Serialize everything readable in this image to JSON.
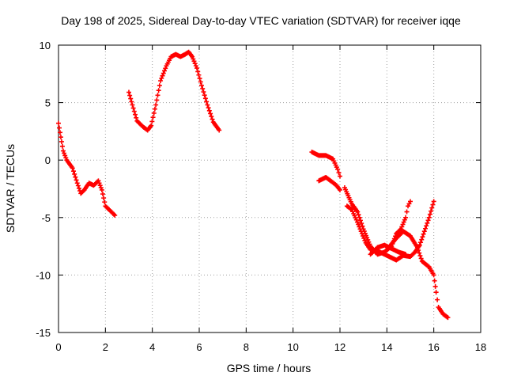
{
  "chart_data": {
    "type": "scatter",
    "title": "Day 198 of 2025, Sidereal Day-to-day VTEC variation (SDTVAR) for receiver iqqe",
    "xlabel": "GPS time / hours",
    "ylabel": "SDTVAR / TECUs",
    "xlim": [
      0,
      18
    ],
    "ylim": [
      -15,
      10
    ],
    "xticks": [
      "0",
      "2",
      "4",
      "6",
      "8",
      "10",
      "12",
      "14",
      "16",
      "18"
    ],
    "yticks": [
      "10",
      "5",
      "0",
      "-5",
      "-10",
      "-15"
    ],
    "grid": true,
    "marker": "plus",
    "color": "#ff0000",
    "series": [
      {
        "name": "arc-1",
        "anchors": [
          [
            0.0,
            3.2
          ],
          [
            0.1,
            2.0
          ],
          [
            0.2,
            0.8
          ],
          [
            0.35,
            0.0
          ],
          [
            0.6,
            -0.7
          ],
          [
            0.8,
            -2.0
          ],
          [
            0.95,
            -2.9
          ],
          [
            1.1,
            -2.6
          ],
          [
            1.3,
            -2.0
          ],
          [
            1.5,
            -2.2
          ],
          [
            1.7,
            -1.8
          ],
          [
            1.85,
            -2.6
          ],
          [
            2.0,
            -4.0
          ],
          [
            2.2,
            -4.4
          ],
          [
            2.4,
            -4.8
          ]
        ]
      },
      {
        "name": "arc-2",
        "anchors": [
          [
            3.0,
            5.9
          ],
          [
            3.15,
            4.8
          ],
          [
            3.35,
            3.4
          ],
          [
            3.6,
            2.9
          ],
          [
            3.8,
            2.6
          ],
          [
            3.95,
            3.0
          ],
          [
            4.15,
            4.8
          ],
          [
            4.35,
            6.9
          ],
          [
            4.6,
            8.2
          ],
          [
            4.8,
            9.0
          ],
          [
            5.0,
            9.2
          ],
          [
            5.2,
            9.0
          ],
          [
            5.4,
            9.2
          ],
          [
            5.55,
            9.4
          ],
          [
            5.7,
            9.0
          ],
          [
            5.9,
            8.0
          ],
          [
            6.1,
            6.5
          ],
          [
            6.35,
            4.8
          ],
          [
            6.6,
            3.3
          ],
          [
            6.85,
            2.6
          ]
        ]
      },
      {
        "name": "arc-3",
        "anchors": [
          [
            10.8,
            0.7
          ],
          [
            11.1,
            0.4
          ],
          [
            11.4,
            0.4
          ],
          [
            11.7,
            0.1
          ],
          [
            11.9,
            -0.8
          ],
          [
            12.0,
            -1.4
          ]
        ]
      },
      {
        "name": "arc-4",
        "anchors": [
          [
            11.1,
            -1.8
          ],
          [
            11.4,
            -1.5
          ],
          [
            11.6,
            -1.8
          ],
          [
            11.85,
            -2.2
          ],
          [
            12.0,
            -2.6
          ]
        ]
      },
      {
        "name": "arc-5",
        "anchors": [
          [
            12.2,
            -2.4
          ],
          [
            12.5,
            -3.8
          ],
          [
            12.75,
            -4.5
          ],
          [
            13.0,
            -6.0
          ],
          [
            13.3,
            -7.5
          ],
          [
            13.6,
            -8.2
          ],
          [
            13.9,
            -8.0
          ],
          [
            14.2,
            -7.5
          ],
          [
            14.4,
            -6.4
          ],
          [
            14.6,
            -6.0
          ],
          [
            14.8,
            -5.0
          ],
          [
            14.9,
            -4.0
          ],
          [
            15.0,
            -3.6
          ]
        ]
      },
      {
        "name": "arc-6",
        "anchors": [
          [
            12.3,
            -4.0
          ],
          [
            12.5,
            -4.3
          ],
          [
            12.7,
            -5.2
          ],
          [
            12.9,
            -6.2
          ],
          [
            13.1,
            -7.2
          ],
          [
            13.3,
            -7.8
          ],
          [
            13.6,
            -7.9
          ],
          [
            13.9,
            -8.2
          ],
          [
            14.1,
            -8.4
          ],
          [
            14.4,
            -8.7
          ],
          [
            14.7,
            -8.3
          ],
          [
            15.0,
            -8.4
          ],
          [
            15.2,
            -8.0
          ],
          [
            15.4,
            -7.4
          ],
          [
            15.6,
            -6.2
          ],
          [
            15.8,
            -5.0
          ],
          [
            16.0,
            -3.6
          ]
        ]
      },
      {
        "name": "arc-7",
        "anchors": [
          [
            14.0,
            -7.8
          ],
          [
            14.4,
            -6.8
          ],
          [
            14.7,
            -6.2
          ],
          [
            15.0,
            -6.6
          ],
          [
            15.3,
            -7.6
          ],
          [
            15.5,
            -8.8
          ],
          [
            15.8,
            -9.3
          ],
          [
            16.0,
            -10.0
          ],
          [
            16.1,
            -11.5
          ],
          [
            16.2,
            -12.8
          ],
          [
            16.4,
            -13.4
          ],
          [
            16.6,
            -13.7
          ]
        ]
      },
      {
        "name": "arc-8",
        "anchors": [
          [
            13.3,
            -8.2
          ],
          [
            13.6,
            -7.6
          ],
          [
            13.9,
            -7.4
          ],
          [
            14.2,
            -7.7
          ],
          [
            14.5,
            -8.0
          ],
          [
            14.8,
            -8.2
          ]
        ]
      }
    ]
  }
}
